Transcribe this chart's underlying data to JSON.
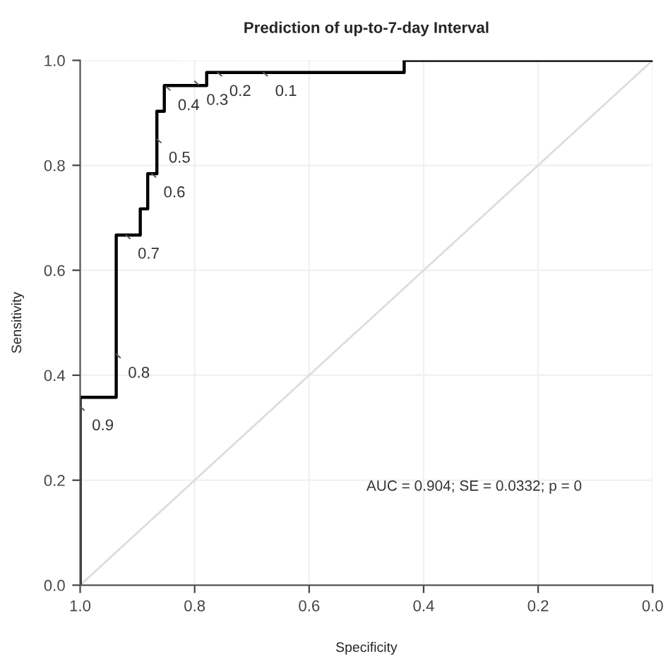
{
  "chart_data": {
    "type": "line",
    "title": "Prediction of up-to-7-day Interval",
    "xlabel": "Specificity",
    "ylabel": "Sensitivity",
    "xlim": [
      1.0,
      0.0
    ],
    "ylim": [
      0.0,
      1.0
    ],
    "xticks": [
      {
        "value": 1.0,
        "label": "1.0"
      },
      {
        "value": 0.8,
        "label": "0.8"
      },
      {
        "value": 0.6,
        "label": "0.6"
      },
      {
        "value": 0.4,
        "label": "0.4"
      },
      {
        "value": 0.2,
        "label": "0.2"
      },
      {
        "value": 0.0,
        "label": "0.0"
      }
    ],
    "yticks": [
      {
        "value": 0.0,
        "label": "0.0"
      },
      {
        "value": 0.2,
        "label": "0.2"
      },
      {
        "value": 0.4,
        "label": "0.4"
      },
      {
        "value": 0.6,
        "label": "0.6"
      },
      {
        "value": 0.8,
        "label": "0.8"
      },
      {
        "value": 1.0,
        "label": "1.0"
      }
    ],
    "grid": true,
    "marker": "none",
    "line_style": "solid",
    "series": [
      {
        "color": "#dddddd",
        "x": [
          1.0,
          0.0
        ],
        "values": [
          0.0,
          1.0
        ]
      },
      {
        "color": "#000000",
        "x": [
          1.0,
          1.0,
          0.937,
          0.937,
          0.895,
          0.895,
          0.882,
          0.882,
          0.866,
          0.866,
          0.853,
          0.853,
          0.779,
          0.779,
          0.434,
          0.434,
          0.0
        ],
        "values": [
          0.0,
          0.358,
          0.358,
          0.667,
          0.667,
          0.717,
          0.717,
          0.784,
          0.784,
          0.903,
          0.903,
          0.952,
          0.952,
          0.977,
          0.977,
          1.0,
          1.0
        ]
      }
    ],
    "annotations": [
      {
        "text": "0.9",
        "x": 1.0,
        "y": 0.34
      },
      {
        "text": "0.8",
        "x": 0.937,
        "y": 0.44
      },
      {
        "text": "0.7",
        "x": 0.92,
        "y": 0.667
      },
      {
        "text": "0.6",
        "x": 0.875,
        "y": 0.784
      },
      {
        "text": "0.5",
        "x": 0.866,
        "y": 0.85
      },
      {
        "text": "0.4",
        "x": 0.85,
        "y": 0.95
      },
      {
        "text": "0.3",
        "x": 0.8,
        "y": 0.96
      },
      {
        "text": "0.2",
        "x": 0.76,
        "y": 0.977
      },
      {
        "text": "0.1",
        "x": 0.68,
        "y": 0.977
      },
      "AUC = 0.904; SE = 0.0332; p = 0"
    ]
  }
}
